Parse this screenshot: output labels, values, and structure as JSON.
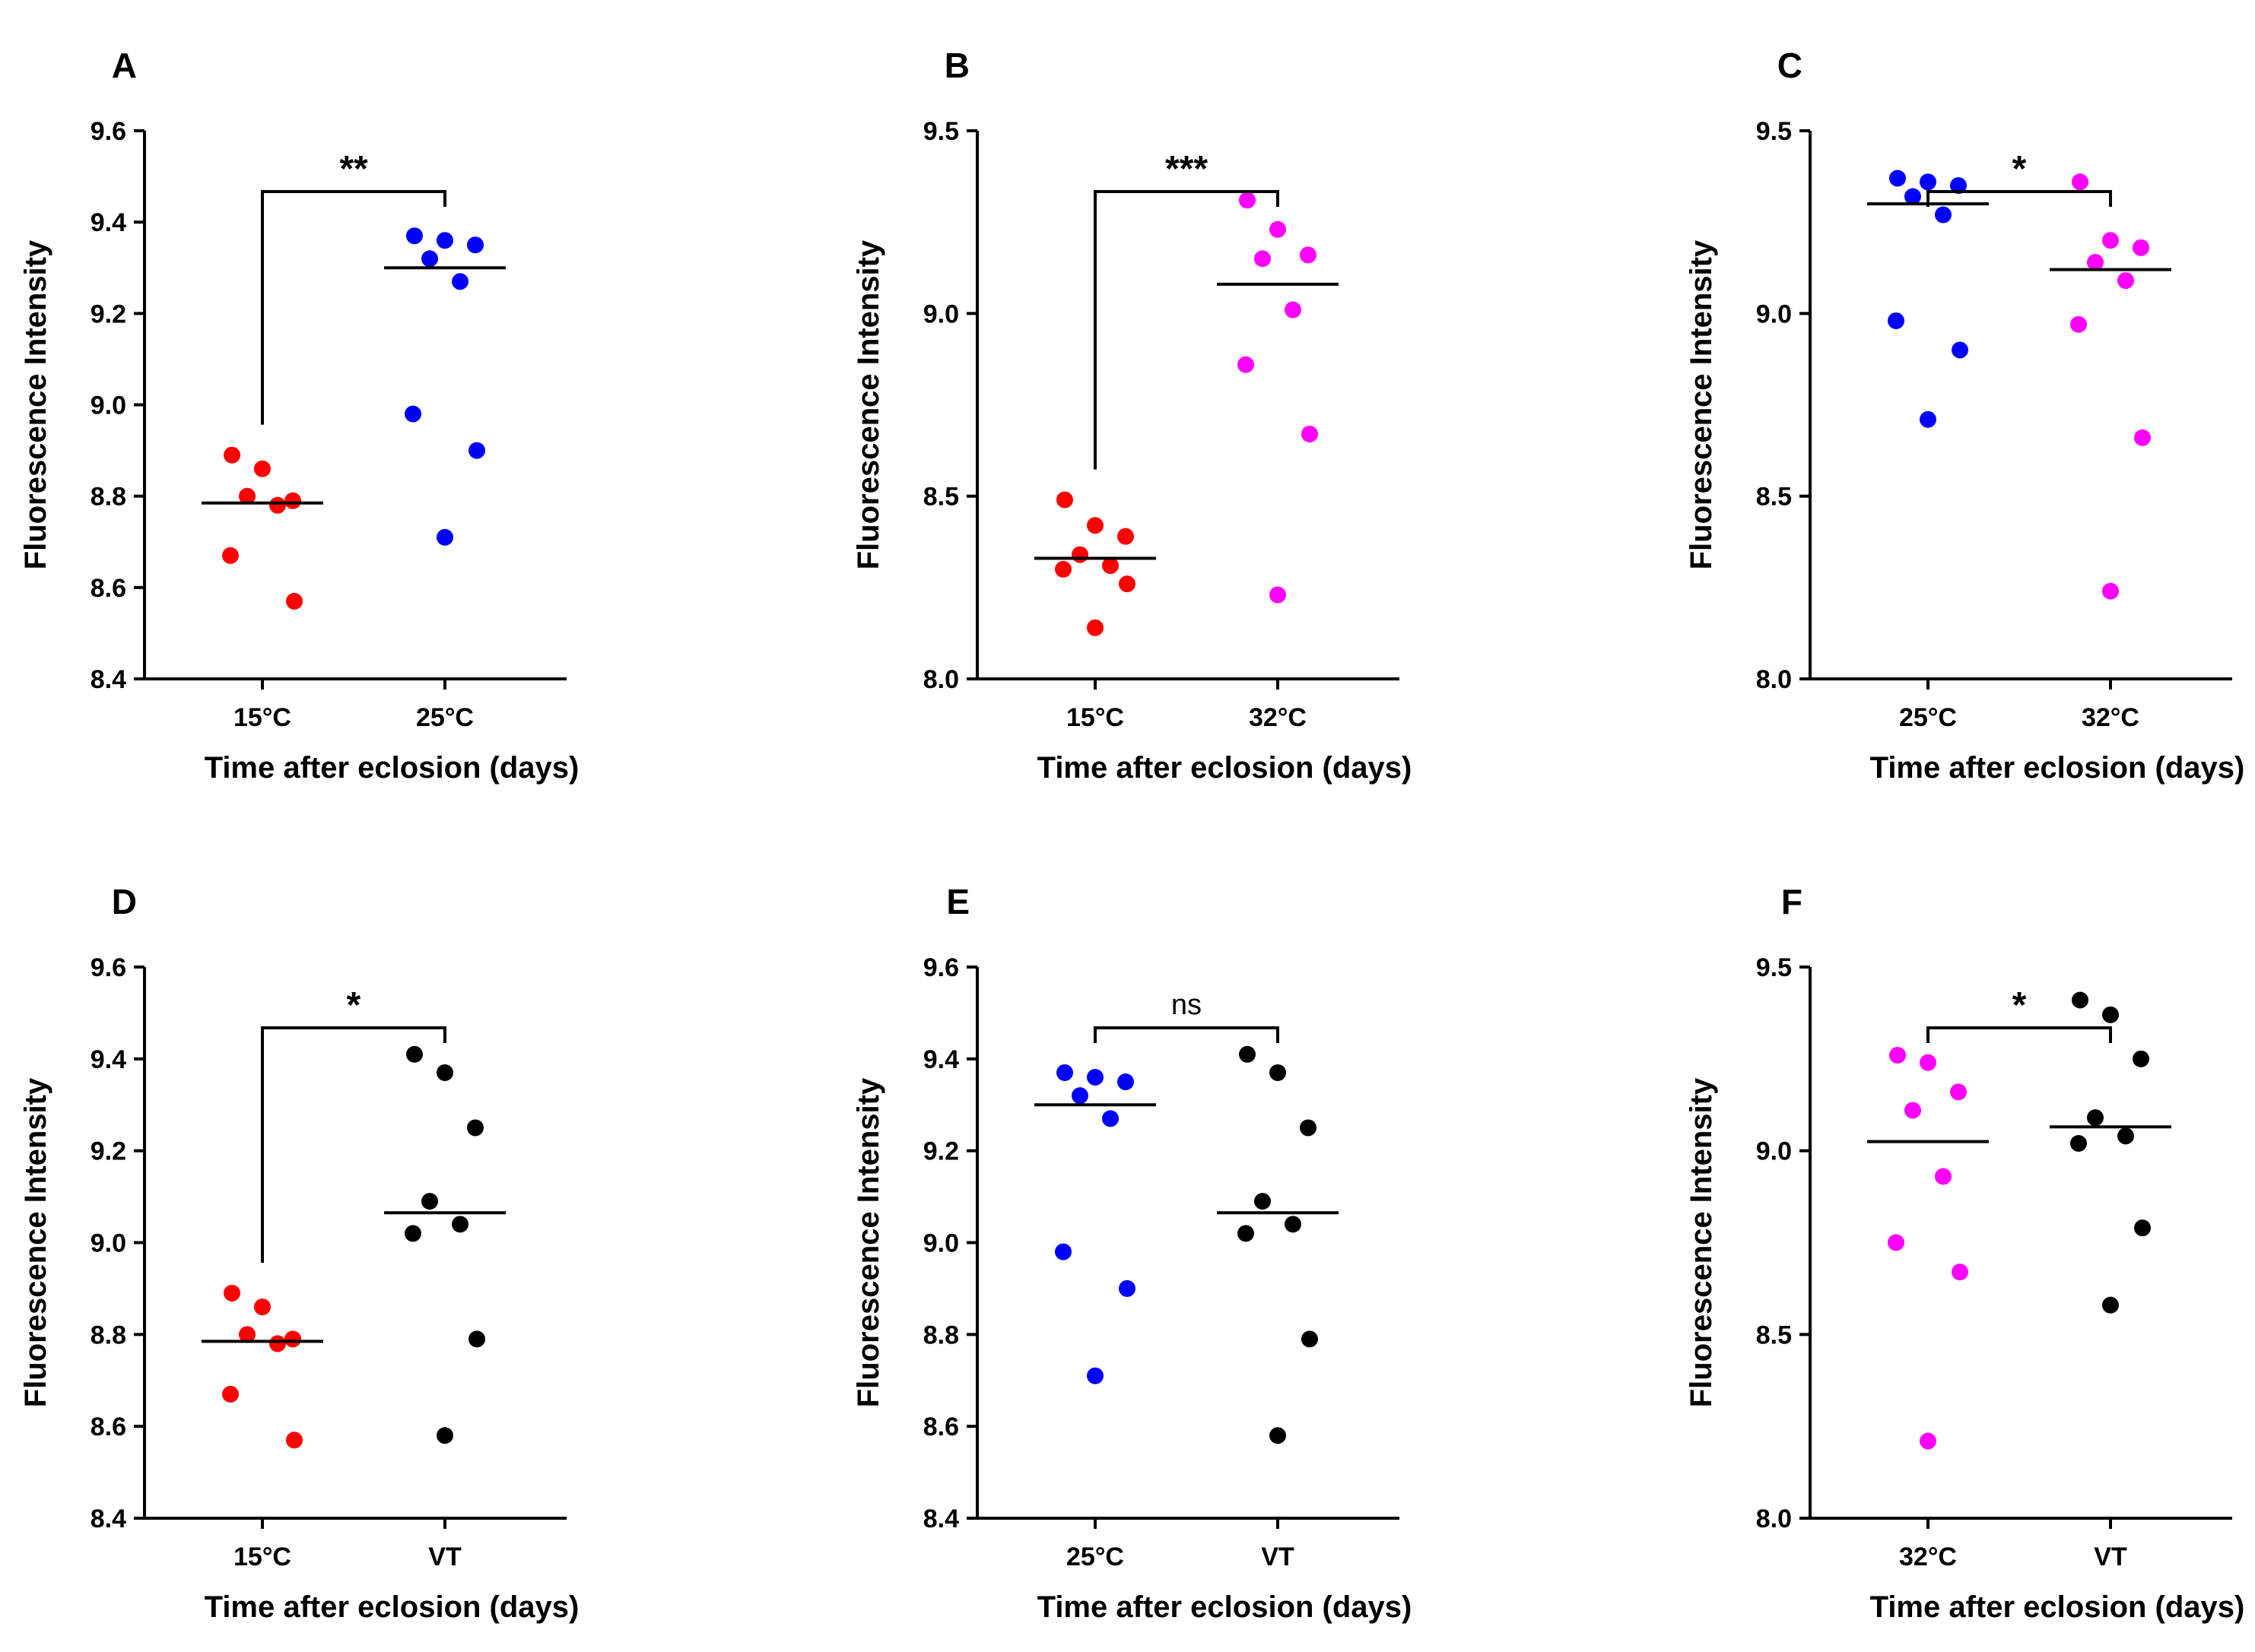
{
  "colors": {
    "15C": "#ff0000",
    "25C": "#0000ff",
    "32C": "#ff00ff",
    "VT": "#000000"
  },
  "chart_data": [
    {
      "type": "scatter",
      "panel": "A",
      "xlabel": "Time after eclosion (days)",
      "ylabel": "Fluorescence Intensity",
      "ylim": [
        8.4,
        9.6
      ],
      "yticks": [
        "8.4",
        "8.6",
        "8.8",
        "9.0",
        "9.2",
        "9.4",
        "9.6"
      ],
      "significance": "**",
      "groups": [
        {
          "label": "15°C",
          "color": "#ff0000",
          "mean": 8.785,
          "values": [
            8.89,
            8.86,
            8.79,
            8.8,
            8.78,
            8.67,
            8.57
          ]
        },
        {
          "label": "25°C",
          "color": "#0000ff",
          "mean": 9.3,
          "values": [
            9.37,
            9.36,
            9.35,
            9.32,
            9.27,
            8.98,
            8.9,
            8.71
          ]
        }
      ]
    },
    {
      "type": "scatter",
      "panel": "B",
      "xlabel": "Time after eclosion (days)",
      "ylabel": "Fluorescence Intensity",
      "ylim": [
        8.0,
        9.5
      ],
      "yticks": [
        "8.0",
        "8.5",
        "9.0",
        "9.5"
      ],
      "significance": "***",
      "groups": [
        {
          "label": "15°C",
          "color": "#ff0000",
          "mean": 8.33,
          "values": [
            8.49,
            8.42,
            8.39,
            8.34,
            8.31,
            8.3,
            8.26,
            8.14
          ]
        },
        {
          "label": "32°C",
          "color": "#ff00ff",
          "mean": 9.08,
          "values": [
            9.31,
            9.23,
            9.16,
            9.15,
            9.01,
            8.86,
            8.67,
            8.23
          ]
        }
      ]
    },
    {
      "type": "scatter",
      "panel": "C",
      "xlabel": "Time after eclosion (days)",
      "ylabel": "Fluorescence Intensity",
      "ylim": [
        8.0,
        9.5
      ],
      "yticks": [
        "8.0",
        "8.5",
        "9.0",
        "9.5"
      ],
      "significance": "*",
      "groups": [
        {
          "label": "25°C",
          "color": "#0000ff",
          "mean": 9.3,
          "values": [
            9.37,
            9.36,
            9.35,
            9.32,
            9.27,
            8.98,
            8.9,
            8.71
          ]
        },
        {
          "label": "32°C",
          "color": "#ff00ff",
          "mean": 9.12,
          "values": [
            9.36,
            9.2,
            9.18,
            9.14,
            9.09,
            8.97,
            8.66,
            8.24
          ]
        }
      ]
    },
    {
      "type": "scatter",
      "panel": "D",
      "xlabel": "Time after eclosion (days)",
      "ylabel": "Fluorescence Intensity",
      "ylim": [
        8.4,
        9.6
      ],
      "yticks": [
        "8.4",
        "8.6",
        "8.8",
        "9.0",
        "9.2",
        "9.4",
        "9.6"
      ],
      "significance": "*",
      "groups": [
        {
          "label": "15°C",
          "color": "#ff0000",
          "mean": 8.785,
          "values": [
            8.89,
            8.86,
            8.79,
            8.8,
            8.78,
            8.67,
            8.57
          ]
        },
        {
          "label": "VT",
          "color": "#000000",
          "mean": 9.065,
          "values": [
            9.41,
            9.37,
            9.25,
            9.09,
            9.04,
            9.02,
            8.79,
            8.58
          ]
        }
      ]
    },
    {
      "type": "scatter",
      "panel": "E",
      "xlabel": "Time after eclosion (days)",
      "ylabel": "Fluorescence Intensity",
      "ylim": [
        8.4,
        9.6
      ],
      "yticks": [
        "8.4",
        "8.6",
        "8.8",
        "9.0",
        "9.2",
        "9.4",
        "9.6"
      ],
      "significance": "ns",
      "groups": [
        {
          "label": "25°C",
          "color": "#0000ff",
          "mean": 9.3,
          "values": [
            9.37,
            9.36,
            9.35,
            9.32,
            9.27,
            8.98,
            8.9,
            8.71
          ]
        },
        {
          "label": "VT",
          "color": "#000000",
          "mean": 9.065,
          "values": [
            9.41,
            9.37,
            9.25,
            9.09,
            9.04,
            9.02,
            8.79,
            8.58
          ]
        }
      ]
    },
    {
      "type": "scatter",
      "panel": "F",
      "xlabel": "Time after eclosion (days)",
      "ylabel": "Fluorescence Intensity",
      "ylim": [
        8.0,
        9.5
      ],
      "yticks": [
        "8.0",
        "8.5",
        "9.0",
        "9.5"
      ],
      "significance": "*",
      "groups": [
        {
          "label": "32°C",
          "color": "#ff00ff",
          "mean": 9.025,
          "values": [
            9.26,
            9.24,
            9.16,
            9.11,
            8.93,
            8.75,
            8.67,
            8.21
          ]
        },
        {
          "label": "VT",
          "color": "#000000",
          "mean": 9.065,
          "values": [
            9.41,
            9.37,
            9.25,
            9.09,
            9.04,
            9.02,
            8.79,
            8.58
          ]
        }
      ]
    }
  ]
}
